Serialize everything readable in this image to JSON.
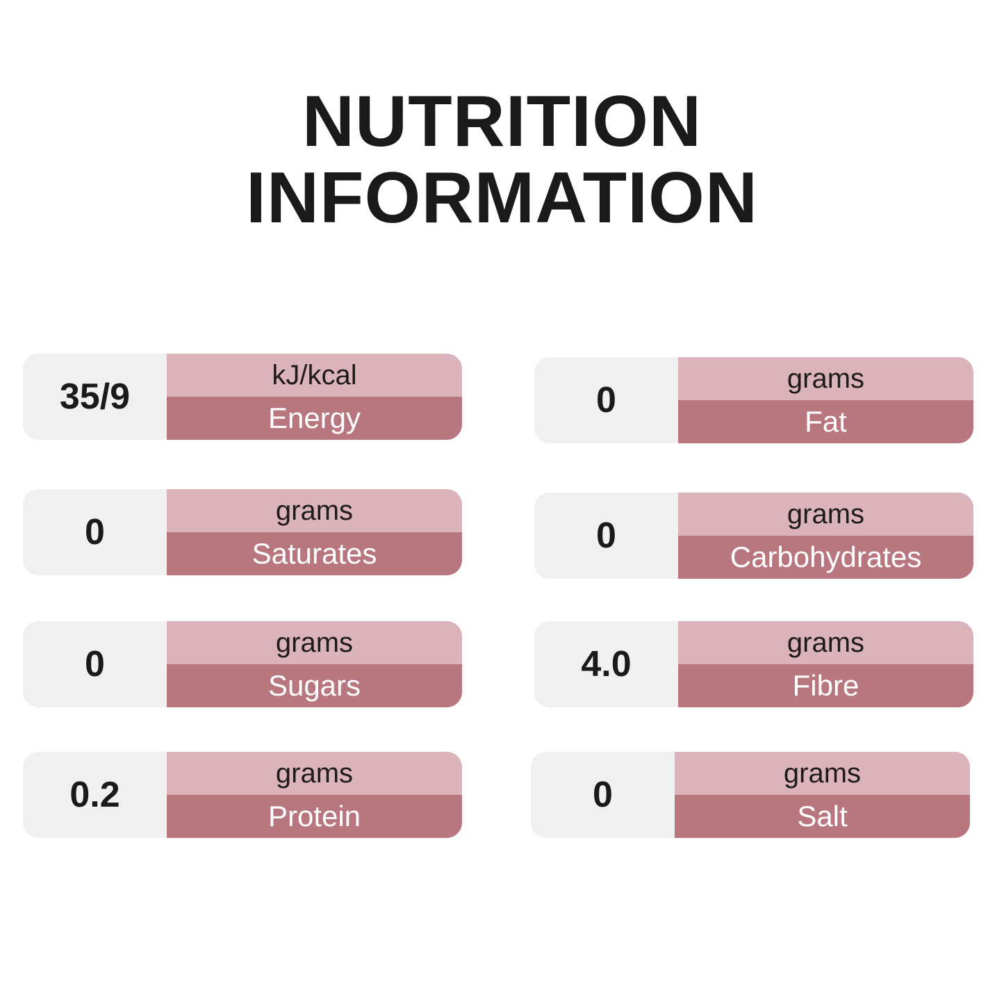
{
  "title": {
    "line1": "NUTRITION",
    "line2": "INFORMATION"
  },
  "colors": {
    "value_bg": "#f0f0f0",
    "unit_bg": "#dbb3ba",
    "label_bg": "#b8777f"
  },
  "items": [
    {
      "value": "35/9",
      "unit": "kJ/kcal",
      "label": "Energy"
    },
    {
      "value": "0",
      "unit": "grams",
      "label": "Fat"
    },
    {
      "value": "0",
      "unit": "grams",
      "label": "Saturates"
    },
    {
      "value": "0",
      "unit": "grams",
      "label": "Carbohydrates"
    },
    {
      "value": "0",
      "unit": "grams",
      "label": "Sugars"
    },
    {
      "value": "4.0",
      "unit": "grams",
      "label": "Fibre"
    },
    {
      "value": "0.2",
      "unit": "grams",
      "label": "Protein"
    },
    {
      "value": "0",
      "unit": "grams",
      "label": "Salt"
    }
  ]
}
